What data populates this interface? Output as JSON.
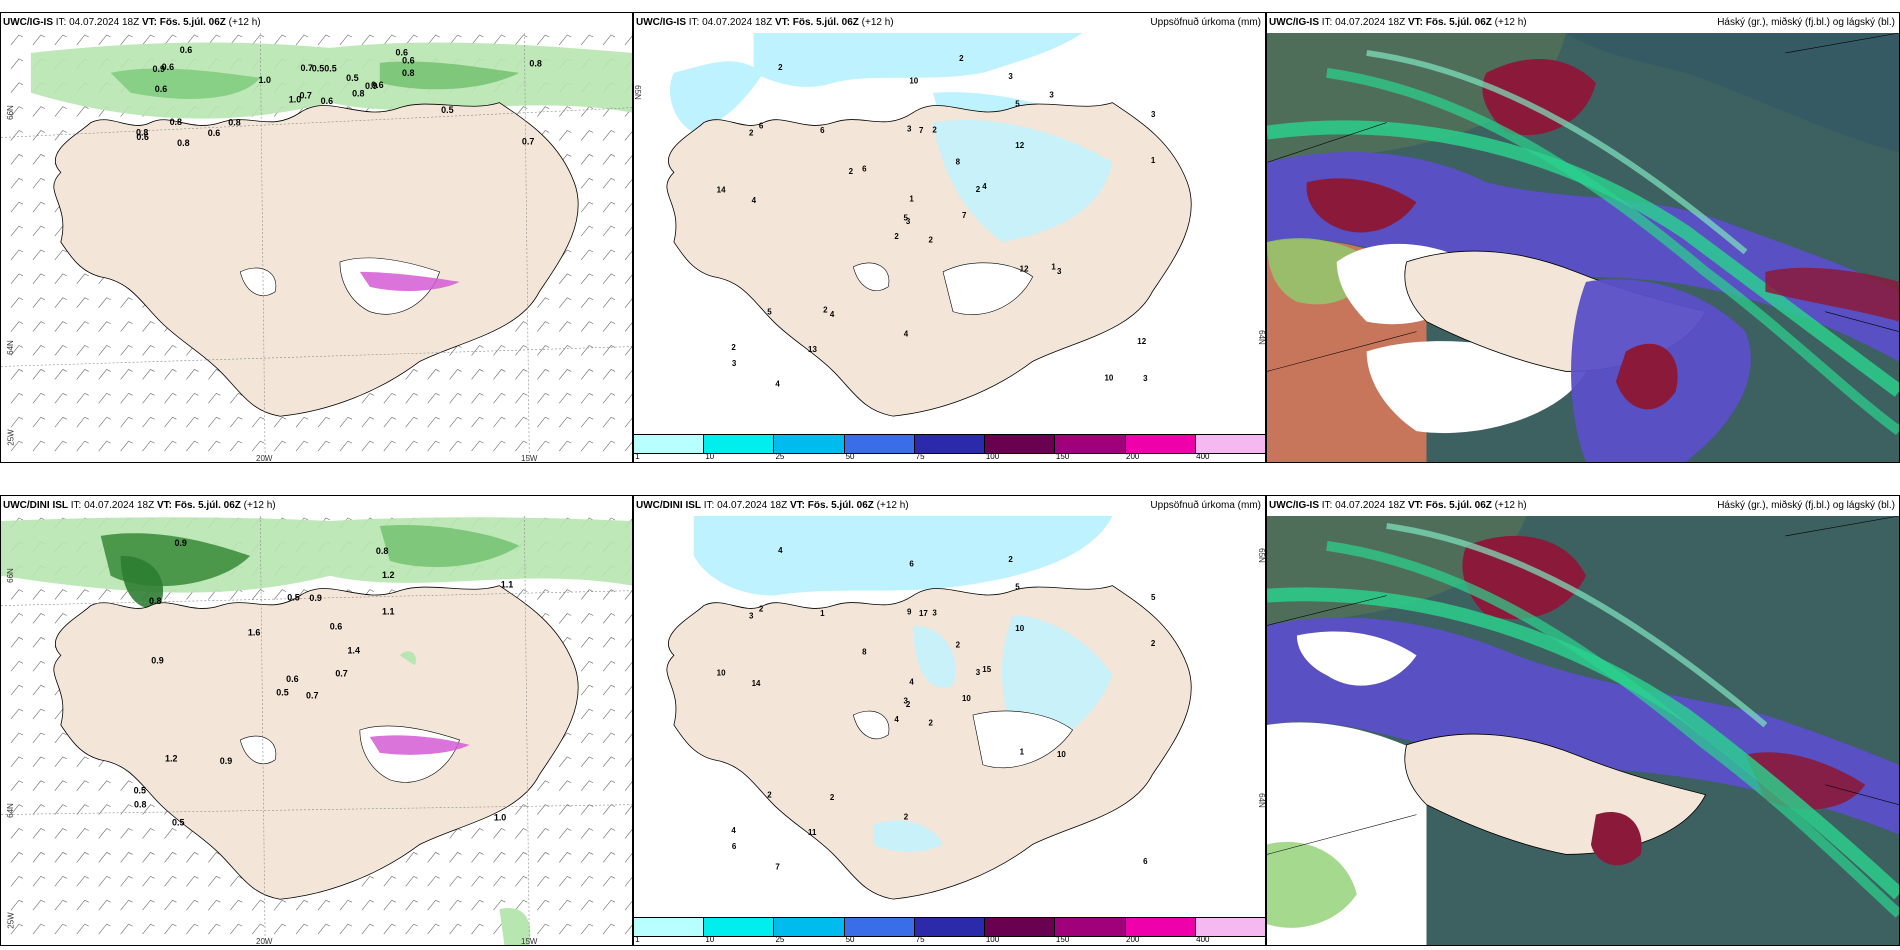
{
  "rows": [
    {
      "model": "UWC/IG-IS",
      "it_label": "IT:",
      "it_value": "04.07.2024 18Z",
      "vt_label": "VT:",
      "vt_value": "Fös. 5.júl. 06Z",
      "lead": "(+12 h)",
      "panel1_labels": [
        "0.6",
        "0.9",
        "0.7",
        "0.8",
        "0.9",
        "0.8",
        "0.6",
        "0.5",
        "0.6",
        "0.8",
        "0.6",
        "0.7",
        "0.6",
        "0.8",
        "1.0",
        "0.8",
        "0.8",
        "0.7",
        "0.5",
        "0.8",
        "1.0",
        "0.6",
        "0.6",
        "0.5",
        "0.6",
        "0.5",
        "0.6"
      ],
      "panel2_labels": [
        "2",
        "2",
        "3",
        "2",
        "2",
        "4",
        "3",
        "2",
        "5",
        "7",
        "2",
        "3",
        "4",
        "3",
        "2",
        "12",
        "4",
        "3",
        "8",
        "5",
        "6",
        "3",
        "13",
        "7",
        "4",
        "3",
        "6",
        "10",
        "14",
        "12",
        "1",
        "5",
        "4",
        "1",
        "6",
        "3",
        "2",
        "10",
        "12",
        "1",
        "2",
        "2"
      ]
    },
    {
      "model": "UWC/DINI ISL",
      "it_label": "IT:",
      "it_value": "04.07.2024 18Z",
      "vt_label": "VT:",
      "vt_value": "Fös. 5.júl. 06Z",
      "lead": "(+12 h)",
      "panel1_labels": [
        "0.7",
        "0.8",
        "0.6",
        "0.5",
        "1.4",
        "0.9",
        "0.8",
        "0.9",
        "1.2",
        "0.7",
        "0.9",
        "1.0",
        "0.9",
        "1.1",
        "0.5",
        "1.1",
        "0.5",
        "0.5",
        "0.6",
        "1.2",
        "1.6",
        "0.8"
      ],
      "panel2_labels": [
        "2",
        "3",
        "2",
        "4",
        "3",
        "2",
        "2",
        "3",
        "5",
        "10",
        "4",
        "6",
        "14",
        "5",
        "4",
        "10",
        "7",
        "9",
        "2",
        "2",
        "8",
        "6",
        "11",
        "17",
        "15",
        "10",
        "2",
        "6",
        "10",
        "1",
        "2",
        "3",
        "2",
        "4",
        "1"
      ]
    }
  ],
  "panel3_model": "UWC/IG-IS",
  "panel2_title_right": "Uppsöfnuð úrkoma (mm)",
  "panel3_title_right": "Háský (gr.), miðský (fj.bl.) og lágský (bl.)",
  "legend_ticks": [
    "1",
    "10",
    "25",
    "50",
    "75",
    "100",
    "150",
    "200",
    "400"
  ],
  "legend_colors": [
    "#b8ffff",
    "#00eeee",
    "#00bbee",
    "#3a6ee8",
    "#2a2aaa",
    "#6a0050",
    "#a0007a",
    "#ee00aa",
    "#f5b8f0"
  ],
  "axis_labels": {
    "lat66": "66N",
    "lat64": "64N",
    "lon25": "25W",
    "lon20": "20W",
    "lon15": "15W",
    "lat65_right": "65N",
    "lat64_right": "64N"
  },
  "colors": {
    "land": "#f3e6d8",
    "precip_light": "#bff2ff",
    "wind_green_light": "#b8e6b0",
    "wind_green_dark": "#2e7d32",
    "magenta": "#d45ad4",
    "cloud_purple": "#5a4fc8",
    "cloud_green": "#2bd48f",
    "cloud_dark": "#3d6060",
    "cloud_red": "#8b1a3a"
  }
}
